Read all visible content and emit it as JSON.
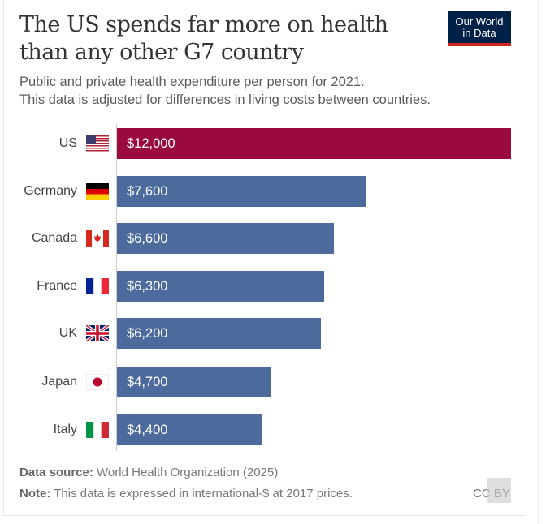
{
  "logo": {
    "line1": "Our World",
    "line2": "in Data"
  },
  "chart_data": {
    "type": "bar",
    "orientation": "horizontal",
    "title": "The US spends far more on health than any other G7 country",
    "subtitle_lines": [
      "Public and private health expenditure per person for 2021.",
      "This data is adjusted for differences in living costs between countries."
    ],
    "categories": [
      "US",
      "Germany",
      "Canada",
      "France",
      "UK",
      "Japan",
      "Italy"
    ],
    "values": [
      12000,
      7600,
      6600,
      6300,
      6200,
      4700,
      4400
    ],
    "value_labels": [
      "$12,000",
      "$7,600",
      "$6,600",
      "$6,300",
      "$6,200",
      "$4,700",
      "$4,400"
    ],
    "flags": [
      "us-flag",
      "germany-flag",
      "canada-flag",
      "france-flag",
      "uk-flag",
      "japan-flag",
      "italy-flag"
    ],
    "colors": {
      "highlight": "#9a0a3e",
      "default": "#4c6a9c"
    },
    "xlim": [
      0,
      12000
    ],
    "grid": false
  },
  "footer": {
    "source_label": "Data source:",
    "source_text": "World Health Organization (2025)",
    "note_label": "Note:",
    "note_text": "This data is expressed in international-$ at 2017 prices.",
    "license": "CC BY"
  }
}
